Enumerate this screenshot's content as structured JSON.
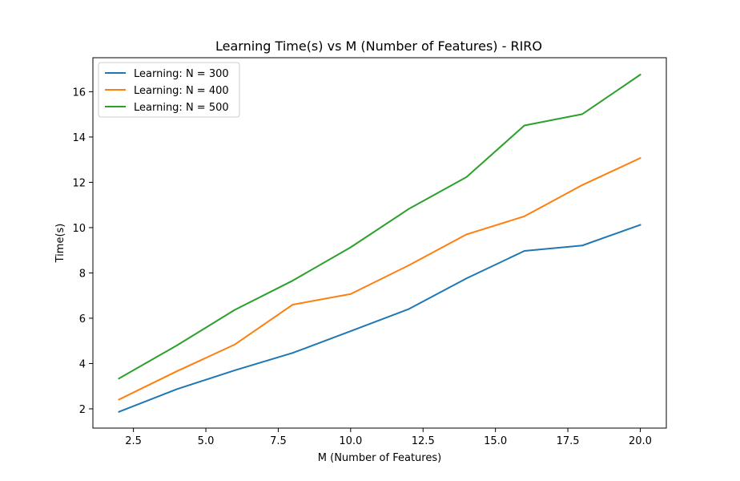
{
  "chart_data": {
    "type": "line",
    "title": "Learning Time(s) vs M (Number of Features) - RIRO",
    "xlabel": "M (Number of Features)",
    "ylabel": "Time(s)",
    "xlim": [
      1.1,
      20.9
    ],
    "ylim": [
      1.15,
      17.5
    ],
    "xticks": [
      2.5,
      5.0,
      7.5,
      10.0,
      12.5,
      15.0,
      17.5,
      20.0
    ],
    "xtick_labels": [
      "2.5",
      "5.0",
      "7.5",
      "10.0",
      "12.5",
      "15.0",
      "17.5",
      "20.0"
    ],
    "yticks": [
      2,
      4,
      6,
      8,
      10,
      12,
      14,
      16
    ],
    "ytick_labels": [
      "2",
      "4",
      "6",
      "8",
      "10",
      "12",
      "14",
      "16"
    ],
    "grid": false,
    "legend_position": "top-left",
    "x": [
      2,
      4,
      6,
      8,
      10,
      12,
      14,
      16,
      18,
      20
    ],
    "series": [
      {
        "name": "Learning: N = 300",
        "color": "#1f77b4",
        "values": [
          1.87,
          2.87,
          3.7,
          4.47,
          5.43,
          6.4,
          7.76,
          8.97,
          9.21,
          10.12
        ]
      },
      {
        "name": "Learning: N = 400",
        "color": "#ff7f0e",
        "values": [
          2.41,
          3.66,
          4.84,
          6.6,
          7.07,
          8.33,
          9.7,
          10.5,
          11.88,
          13.07
        ]
      },
      {
        "name": "Learning: N = 500",
        "color": "#2ca02c",
        "values": [
          3.34,
          4.8,
          6.37,
          7.66,
          9.13,
          10.82,
          12.23,
          14.51,
          15.01,
          16.75
        ]
      }
    ]
  }
}
